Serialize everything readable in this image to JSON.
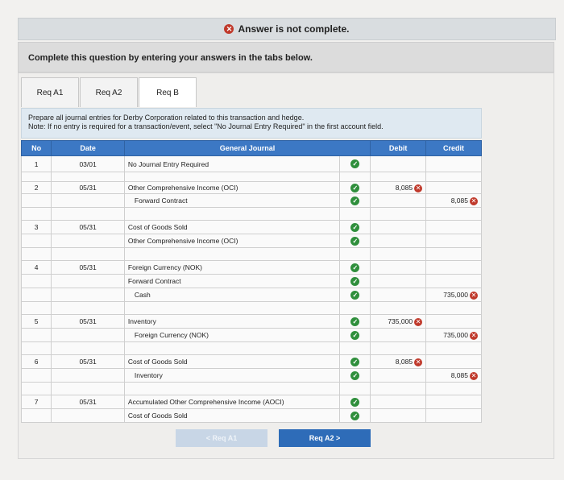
{
  "banner": {
    "icon": "x-circle-icon",
    "text": "Answer is not complete."
  },
  "instructions": "Complete this question by entering your answers in the tabs below.",
  "tabs": [
    {
      "label": "Req A1",
      "active": false
    },
    {
      "label": "Req A2",
      "active": false
    },
    {
      "label": "Req B",
      "active": true
    }
  ],
  "prompt": {
    "line1": "Prepare all journal entries for Derby Corporation related to this transaction and hedge.",
    "line2": "Note: If no entry is required for a transaction/event, select \"No Journal Entry Required\" in the first account field."
  },
  "table": {
    "headers": {
      "no": "No",
      "date": "Date",
      "journal": "General Journal",
      "debit": "Debit",
      "credit": "Credit"
    },
    "rows": [
      {
        "no": "1",
        "date": "03/01",
        "account": "No Journal Entry Required",
        "indent": false,
        "debit": "",
        "credit": ""
      },
      {
        "no": "2",
        "date": "05/31",
        "account": "Other Comprehensive Income (OCI)",
        "indent": false,
        "debit": "8,085",
        "credit": ""
      },
      {
        "no": "",
        "date": "",
        "account": "Forward Contract",
        "indent": true,
        "debit": "",
        "credit": "8,085"
      },
      {
        "no": "3",
        "date": "05/31",
        "account": "Cost of Goods Sold",
        "indent": false,
        "debit": "",
        "credit": ""
      },
      {
        "no": "",
        "date": "",
        "account": "Other Comprehensive Income (OCI)",
        "indent": false,
        "debit": "",
        "credit": ""
      },
      {
        "no": "4",
        "date": "05/31",
        "account": "Foreign Currency (NOK)",
        "indent": false,
        "debit": "",
        "credit": ""
      },
      {
        "no": "",
        "date": "",
        "account": "Forward Contract",
        "indent": false,
        "debit": "",
        "credit": ""
      },
      {
        "no": "",
        "date": "",
        "account": "Cash",
        "indent": true,
        "debit": "",
        "credit": "735,000"
      },
      {
        "no": "5",
        "date": "05/31",
        "account": "Inventory",
        "indent": false,
        "debit": "735,000",
        "credit": ""
      },
      {
        "no": "",
        "date": "",
        "account": "Foreign Currency (NOK)",
        "indent": true,
        "debit": "",
        "credit": "735,000"
      },
      {
        "no": "6",
        "date": "05/31",
        "account": "Cost of Goods Sold",
        "indent": false,
        "debit": "8,085",
        "credit": ""
      },
      {
        "no": "",
        "date": "",
        "account": "Inventory",
        "indent": true,
        "debit": "",
        "credit": "8,085"
      },
      {
        "no": "7",
        "date": "05/31",
        "account": "Accumulated Other Comprehensive Income (AOCI)",
        "indent": false,
        "debit": "",
        "credit": ""
      },
      {
        "no": "",
        "date": "",
        "account": "Cost of Goods Sold",
        "indent": false,
        "debit": "",
        "credit": ""
      }
    ]
  },
  "nav": {
    "prev_label": "<  Req A1",
    "next_label": "Req A2  >"
  }
}
